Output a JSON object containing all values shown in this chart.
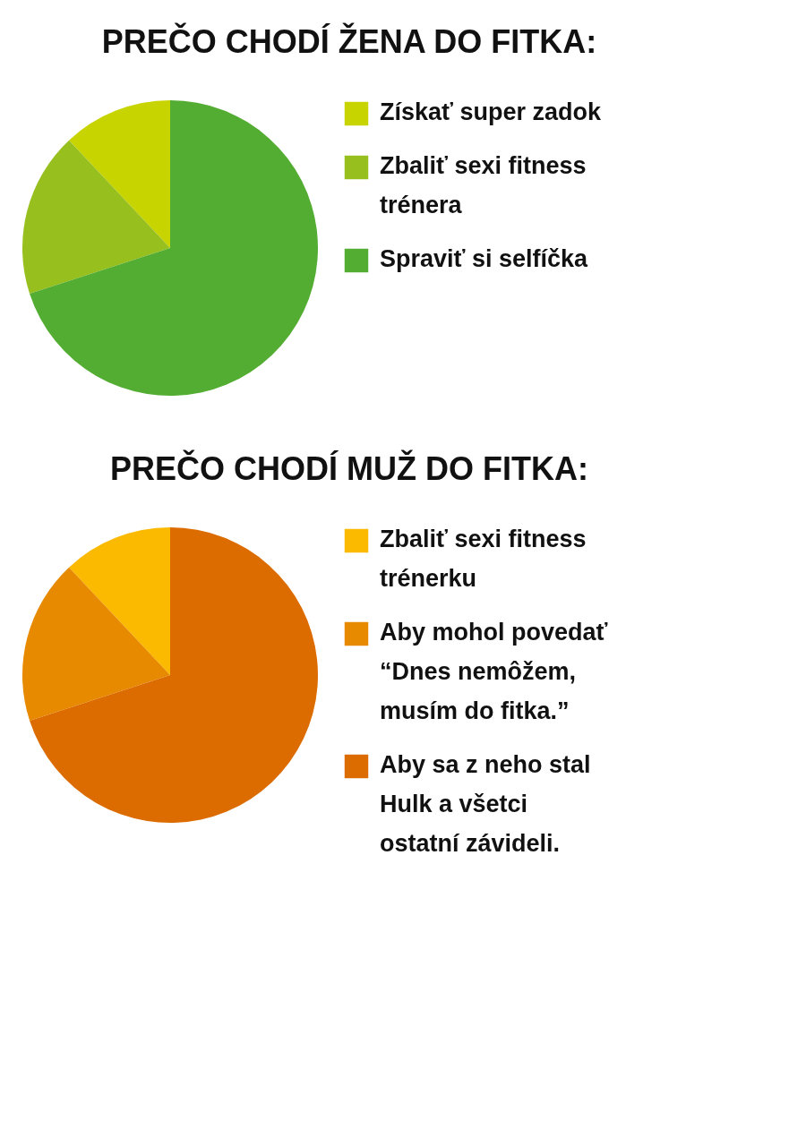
{
  "chart_data": [
    {
      "type": "pie",
      "title": "PREČO CHODÍ ŽENA DO FITKA:",
      "categories": [
        "Získať super zadok",
        "Zbaliť sexi fitness trénera",
        "Spraviť si selfíčka"
      ],
      "values": [
        12,
        18,
        70
      ],
      "colors": [
        "#c8d400",
        "#97c01e",
        "#53ad32"
      ],
      "legend": "right"
    },
    {
      "type": "pie",
      "title": "PREČO CHODÍ MUŽ DO FITKA:",
      "categories": [
        "Zbaliť sexi fitness trénerku",
        "Aby mohol povedať “Dnes nemôžem, musím do fitka.”",
        "Aby sa z neho stal Hulk a všetci ostatní závideli."
      ],
      "values": [
        12,
        18,
        70
      ],
      "colors": [
        "#fbb900",
        "#e88a00",
        "#dc6c00"
      ],
      "legend": "right"
    }
  ]
}
